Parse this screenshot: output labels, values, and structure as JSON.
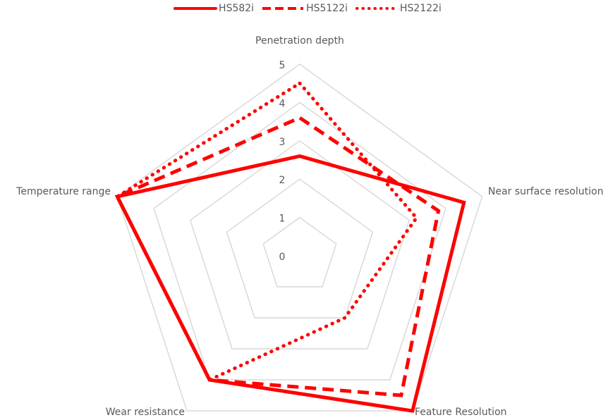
{
  "chart_data": {
    "type": "radar",
    "axes": [
      "Penetration depth",
      "Near surface resolution",
      "Feature Resolution",
      "Wear resistance",
      "Temperature range"
    ],
    "rlim": [
      0,
      5
    ],
    "ticks": [
      "0",
      "1",
      "2",
      "3",
      "4",
      "5"
    ],
    "series": [
      {
        "name": "HS582i",
        "values": [
          2.6,
          4.5,
          5.0,
          4.0,
          5.0
        ],
        "style": "solid"
      },
      {
        "name": "HS5122i",
        "values": [
          3.6,
          3.8,
          4.5,
          4.0,
          5.0
        ],
        "style": "dashed"
      },
      {
        "name": "HS2122i",
        "values": [
          4.5,
          3.2,
          2.0,
          4.0,
          5.0
        ],
        "style": "dotted"
      }
    ],
    "grid": true,
    "legend_position": "top",
    "colors": {
      "series": "#ff0000",
      "grid": "#d9d9d9",
      "text": "#595959"
    }
  }
}
